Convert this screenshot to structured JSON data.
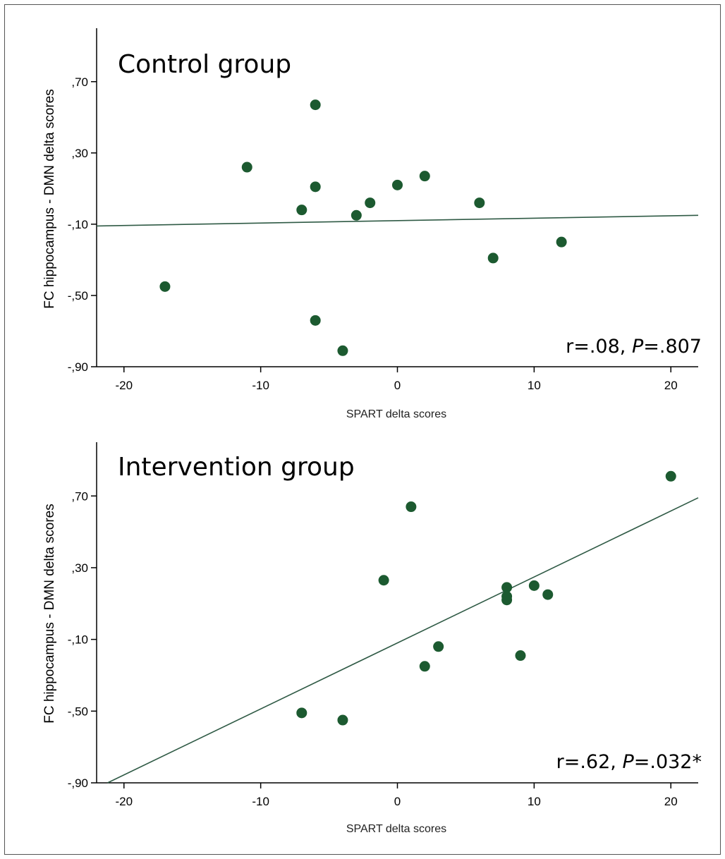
{
  "chart_data": [
    {
      "type": "scatter",
      "title": "Control group",
      "xlabel": "SPART delta scores",
      "ylabel": "FC hippocampus - DMN delta scores",
      "xlim": [
        -22,
        22
      ],
      "ylim": [
        -0.9,
        1.0
      ],
      "xticks": [
        -20,
        -10,
        0,
        10,
        20
      ],
      "xtick_labels": [
        "-20",
        "-10",
        "0",
        "10",
        "20"
      ],
      "yticks": [
        -0.9,
        -0.5,
        -0.1,
        0.3,
        0.7
      ],
      "ytick_labels": [
        "-,90",
        "-,50",
        "-,10",
        ",30",
        ",70"
      ],
      "stat_prefix": "r=.08, ",
      "stat_p": "P",
      "stat_suffix": "=.807",
      "points": [
        {
          "x": -17,
          "y": -0.45
        },
        {
          "x": -11,
          "y": 0.22
        },
        {
          "x": -7,
          "y": -0.02
        },
        {
          "x": -6,
          "y": 0.57
        },
        {
          "x": -6,
          "y": 0.11
        },
        {
          "x": -6,
          "y": -0.64
        },
        {
          "x": -4,
          "y": -0.81
        },
        {
          "x": -3,
          "y": -0.05
        },
        {
          "x": -2,
          "y": 0.02
        },
        {
          "x": 0,
          "y": 0.12
        },
        {
          "x": 2,
          "y": 0.17
        },
        {
          "x": 6,
          "y": 0.02
        },
        {
          "x": 7,
          "y": -0.29
        },
        {
          "x": 12,
          "y": -0.2
        }
      ],
      "fit_line": {
        "x": [
          -22,
          22
        ],
        "y": [
          -0.11,
          -0.05
        ]
      },
      "colors": {
        "points": "#1c5a30",
        "line": "#2f5a45"
      }
    },
    {
      "type": "scatter",
      "title": "Intervention group",
      "xlabel": "SPART delta scores",
      "ylabel": "FC hippocampus - DMN delta scores",
      "xlim": [
        -22,
        22
      ],
      "ylim": [
        -0.9,
        1.0
      ],
      "xticks": [
        -20,
        -10,
        0,
        10,
        20
      ],
      "xtick_labels": [
        "-20",
        "-10",
        "0",
        "10",
        "20"
      ],
      "yticks": [
        -0.9,
        -0.5,
        -0.1,
        0.3,
        0.7
      ],
      "ytick_labels": [
        "-,90",
        "-,50",
        "-,10",
        ",30",
        ",70"
      ],
      "stat_prefix": "r=.62, ",
      "stat_p": "P",
      "stat_suffix": "=.032*",
      "points": [
        {
          "x": -7,
          "y": -0.51
        },
        {
          "x": -4,
          "y": -0.55
        },
        {
          "x": -1,
          "y": 0.23
        },
        {
          "x": 1,
          "y": 0.64
        },
        {
          "x": 2,
          "y": -0.25
        },
        {
          "x": 3,
          "y": -0.14
        },
        {
          "x": 8,
          "y": 0.19
        },
        {
          "x": 8,
          "y": 0.14
        },
        {
          "x": 8,
          "y": 0.12
        },
        {
          "x": 9,
          "y": -0.19
        },
        {
          "x": 10,
          "y": 0.2
        },
        {
          "x": 11,
          "y": 0.15
        },
        {
          "x": 20,
          "y": 0.81
        }
      ],
      "fit_line": {
        "x": [
          -21.2,
          22
        ],
        "y": [
          -0.9,
          0.69
        ]
      },
      "colors": {
        "points": "#1c5a30",
        "line": "#2f5a45"
      }
    }
  ]
}
